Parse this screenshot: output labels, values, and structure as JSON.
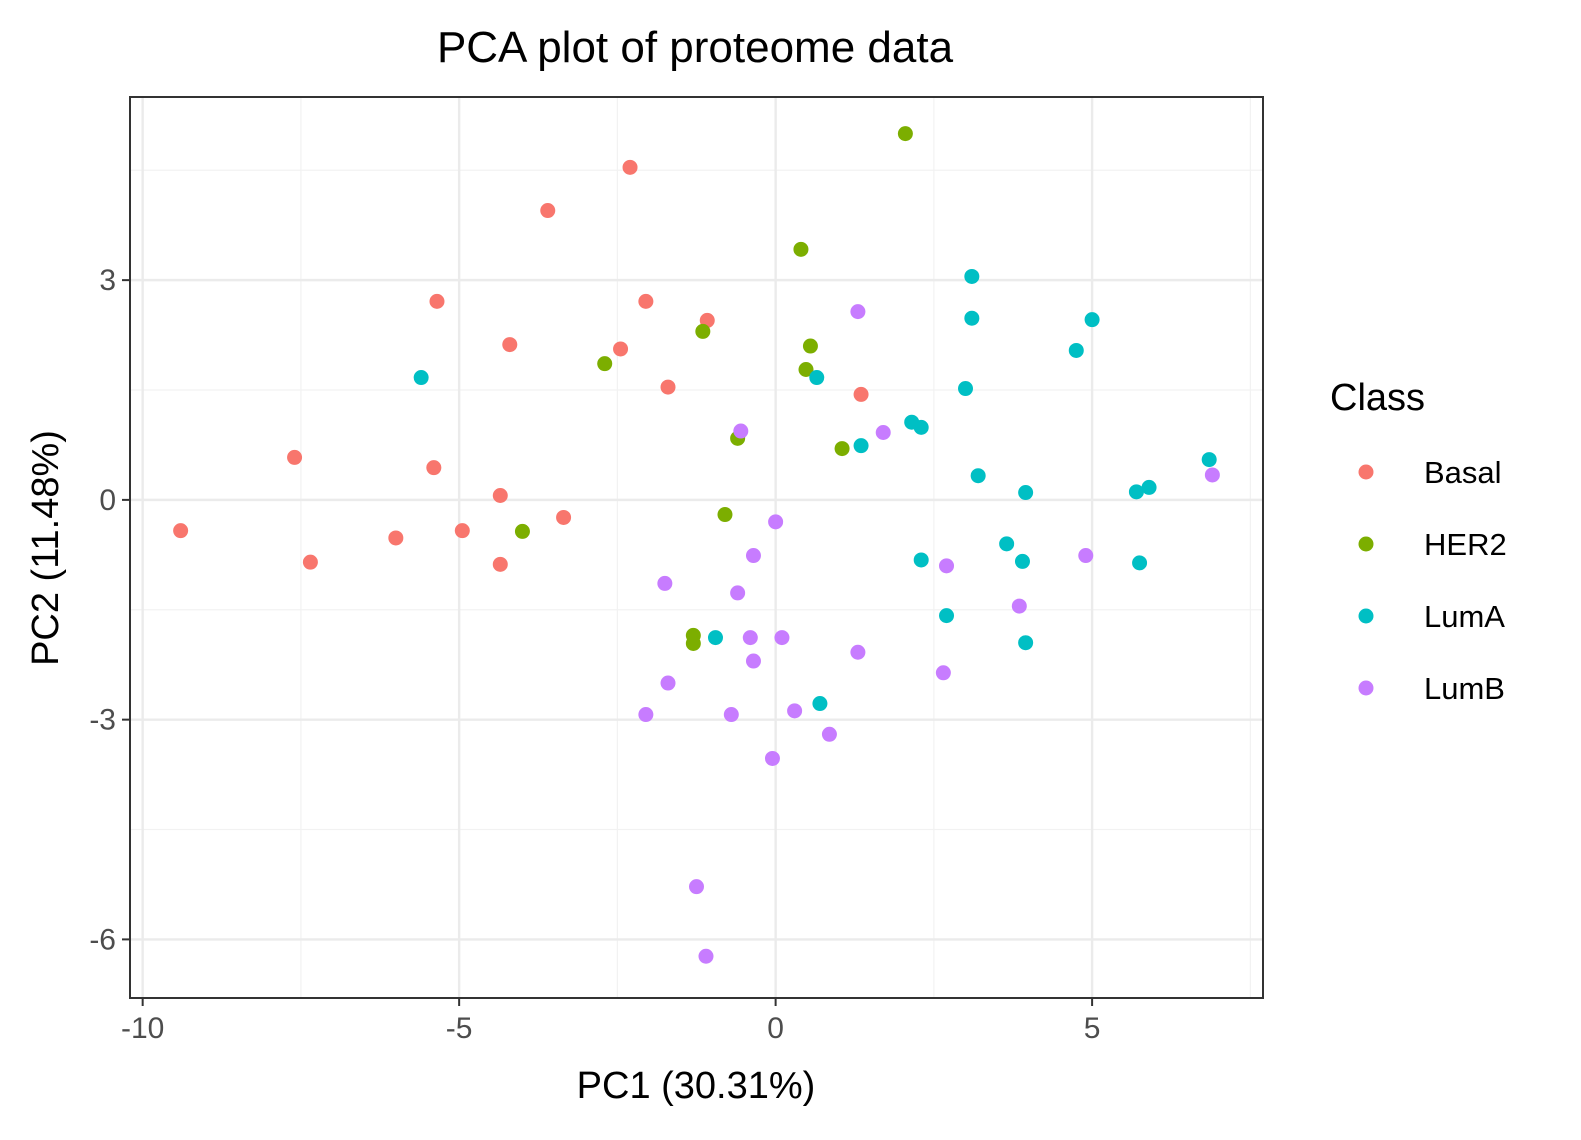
{
  "chart_data": {
    "type": "scatter",
    "title": "PCA plot of proteome data",
    "xlabel": "PC1 (30.31%)",
    "ylabel": "PC2 (11.48%)",
    "xlim": [
      -10.2,
      7.7
    ],
    "ylim": [
      -6.8,
      5.5
    ],
    "x_ticks": [
      -10,
      -5,
      0,
      5
    ],
    "x_tick_labels": [
      "-10",
      "-5",
      "0",
      "5"
    ],
    "y_ticks": [
      -6,
      -3,
      0,
      3
    ],
    "y_tick_labels": [
      "-6",
      "-3",
      "0",
      "3"
    ],
    "grid": true,
    "legend": {
      "title": "Class",
      "position": "right"
    },
    "series": [
      {
        "name": "Basal",
        "color": "#F8766D",
        "points": [
          [
            -9.4,
            -0.42
          ],
          [
            -7.6,
            0.58
          ],
          [
            -7.35,
            -0.85
          ],
          [
            -6.0,
            -0.52
          ],
          [
            -5.4,
            0.44
          ],
          [
            -5.35,
            2.71
          ],
          [
            -4.95,
            -0.42
          ],
          [
            -4.35,
            0.06
          ],
          [
            -4.35,
            -0.88
          ],
          [
            -4.2,
            2.12
          ],
          [
            -3.6,
            3.95
          ],
          [
            -3.35,
            -0.24
          ],
          [
            -2.45,
            2.06
          ],
          [
            -2.3,
            4.54
          ],
          [
            -2.05,
            2.71
          ],
          [
            -1.7,
            1.54
          ],
          [
            -1.08,
            2.45
          ],
          [
            1.35,
            1.44
          ]
        ]
      },
      {
        "name": "HER2",
        "color": "#7CAE00",
        "points": [
          [
            2.05,
            5.0
          ],
          [
            0.4,
            3.42
          ],
          [
            -1.15,
            2.3
          ],
          [
            0.55,
            2.1
          ],
          [
            -2.7,
            1.86
          ],
          [
            0.48,
            1.78
          ],
          [
            -0.6,
            0.84
          ],
          [
            1.05,
            0.7
          ],
          [
            -4.0,
            -0.43
          ],
          [
            -0.8,
            -0.2
          ],
          [
            -1.3,
            -1.85
          ],
          [
            -1.3,
            -1.96
          ]
        ]
      },
      {
        "name": "LumA",
        "color": "#00BFC4",
        "points": [
          [
            3.1,
            3.05
          ],
          [
            3.1,
            2.48
          ],
          [
            5.0,
            2.46
          ],
          [
            4.75,
            2.04
          ],
          [
            -5.6,
            1.67
          ],
          [
            0.65,
            1.67
          ],
          [
            3.0,
            1.52
          ],
          [
            2.15,
            1.06
          ],
          [
            2.3,
            0.99
          ],
          [
            1.35,
            0.74
          ],
          [
            6.85,
            0.55
          ],
          [
            3.2,
            0.33
          ],
          [
            5.9,
            0.17
          ],
          [
            5.7,
            0.11
          ],
          [
            3.95,
            0.1
          ],
          [
            3.65,
            -0.6
          ],
          [
            2.3,
            -0.82
          ],
          [
            3.9,
            -0.84
          ],
          [
            5.75,
            -0.86
          ],
          [
            2.7,
            -1.58
          ],
          [
            -0.95,
            -1.88
          ],
          [
            3.95,
            -1.95
          ],
          [
            0.7,
            -2.78
          ]
        ]
      },
      {
        "name": "LumB",
        "color": "#C77CFF",
        "points": [
          [
            1.3,
            2.57
          ],
          [
            1.7,
            0.92
          ],
          [
            -0.55,
            0.94
          ],
          [
            6.9,
            0.34
          ],
          [
            0.0,
            -0.3
          ],
          [
            -0.35,
            -0.76
          ],
          [
            4.9,
            -0.76
          ],
          [
            2.7,
            -0.9
          ],
          [
            -1.75,
            -1.14
          ],
          [
            -0.6,
            -1.27
          ],
          [
            3.85,
            -1.45
          ],
          [
            -0.4,
            -1.88
          ],
          [
            0.1,
            -1.88
          ],
          [
            1.3,
            -2.08
          ],
          [
            -0.35,
            -2.2
          ],
          [
            2.65,
            -2.36
          ],
          [
            -1.7,
            -2.5
          ],
          [
            -2.05,
            -2.93
          ],
          [
            -0.7,
            -2.93
          ],
          [
            0.3,
            -2.88
          ],
          [
            0.85,
            -3.2
          ],
          [
            -0.05,
            -3.53
          ],
          [
            -1.25,
            -5.28
          ],
          [
            -1.1,
            -6.23
          ]
        ]
      }
    ]
  }
}
